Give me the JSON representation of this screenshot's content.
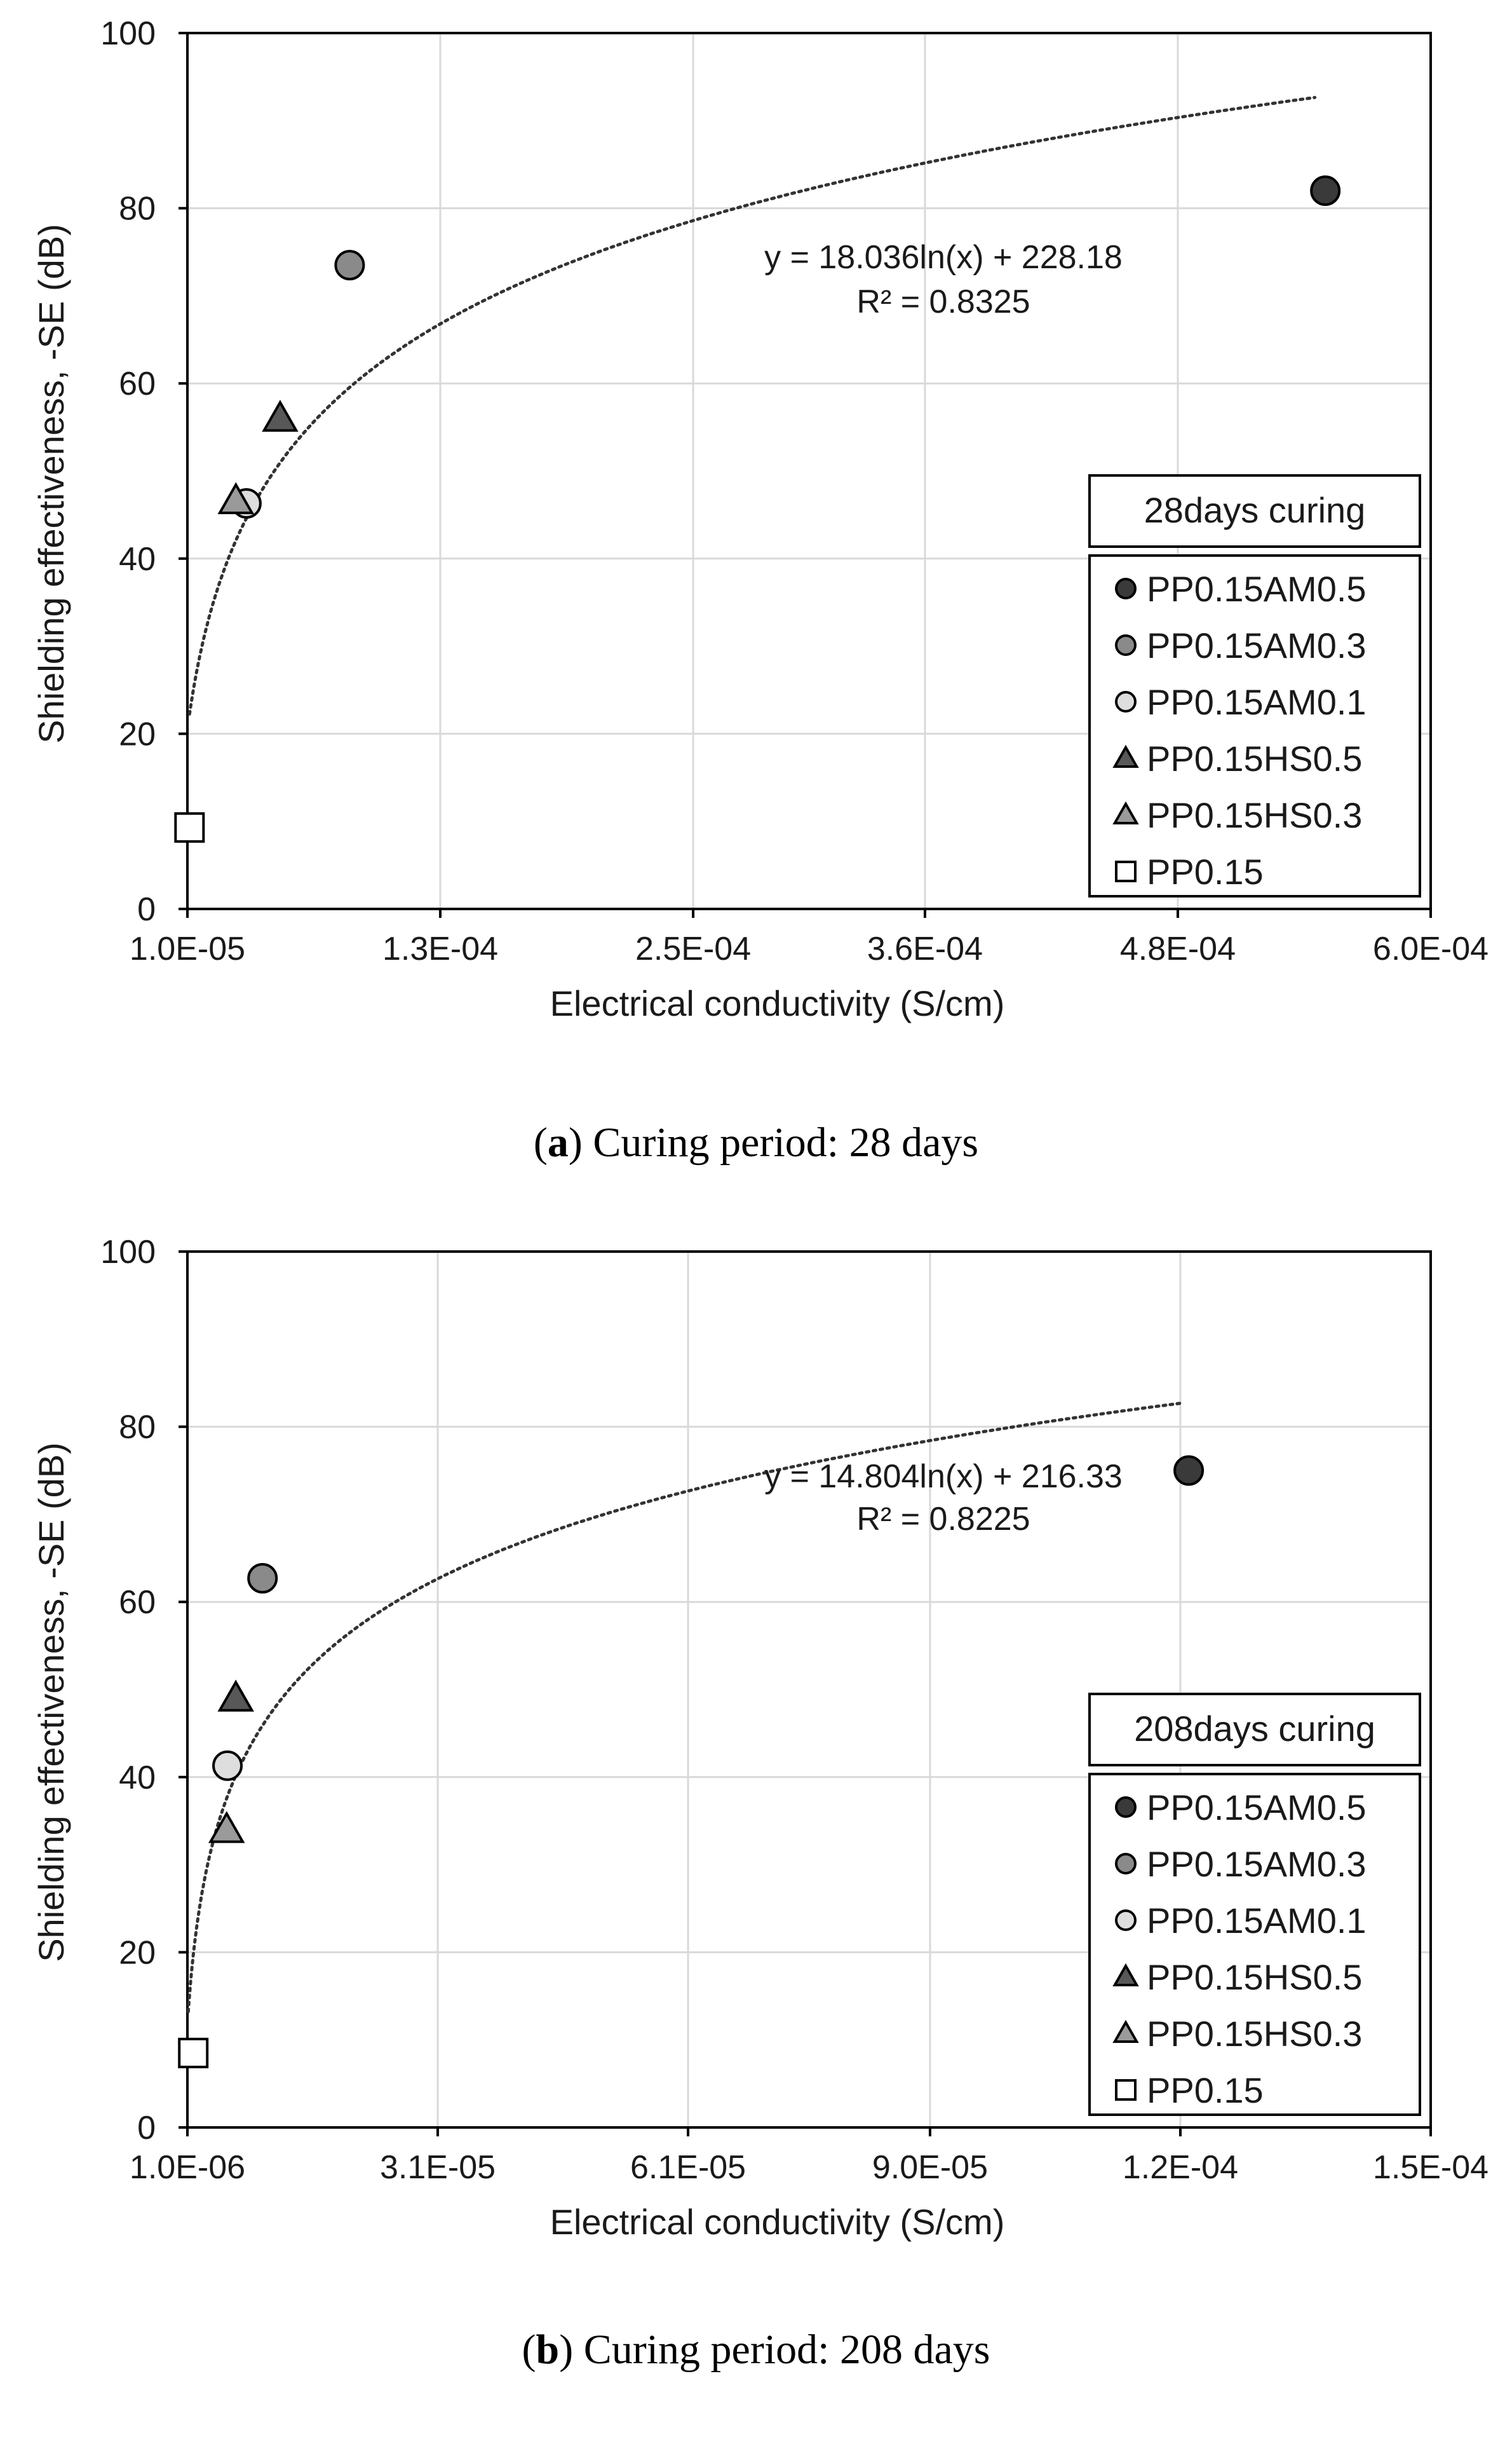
{
  "chart_data": [
    {
      "type": "scatter",
      "panel": "a",
      "legend_title": "28days curing",
      "xlabel": "Electrical conductivity (S/cm)",
      "ylabel": "Shielding effectiveness, -SE (dB)",
      "xlim": [
        1e-05,
        0.0006
      ],
      "ylim": [
        0,
        100
      ],
      "x_tick_values": [
        1e-05,
        0.00013,
        0.00025,
        0.00036,
        0.00048,
        0.0006
      ],
      "x_tick_labels": [
        "1.0E-05",
        "1.3E-04",
        "2.5E-04",
        "3.6E-04",
        "4.8E-04",
        "6.0E-04"
      ],
      "y_tick_values": [
        0,
        20,
        40,
        60,
        80,
        100
      ],
      "y_tick_labels": [
        "0",
        "20",
        "40",
        "60",
        "80",
        "100"
      ],
      "grid": true,
      "legend_position": "bottom-right",
      "series": [
        {
          "name": "PP0.15AM0.5",
          "marker": "circle",
          "color": "#3a3a3a",
          "x": [
            0.00055
          ],
          "y": [
            82
          ]
        },
        {
          "name": "PP0.15AM0.3",
          "marker": "circle",
          "color": "#8a8a8a",
          "x": [
            8.7e-05
          ],
          "y": [
            73.5
          ]
        },
        {
          "name": "PP0.15AM0.1",
          "marker": "circle",
          "color": "#dedede",
          "x": [
            3.8e-05
          ],
          "y": [
            46.3
          ]
        },
        {
          "name": "PP0.15HS0.5",
          "marker": "triangle",
          "color": "#585858",
          "x": [
            5.4e-05
          ],
          "y": [
            56
          ]
        },
        {
          "name": "PP0.15HS0.3",
          "marker": "triangle",
          "color": "#9a9a9a",
          "x": [
            3.3e-05
          ],
          "y": [
            46.6
          ]
        },
        {
          "name": "PP0.15",
          "marker": "square",
          "color": "#ffffff",
          "x": [
            1.1e-05
          ],
          "y": [
            9.3
          ]
        }
      ],
      "trendline": {
        "a": 18.036,
        "b": 228.18,
        "x_start": 1.1e-05,
        "x_end": 0.000545,
        "equation": "y = 18.036ln(x) + 228.18",
        "r2": "R² = 0.8325"
      }
    },
    {
      "type": "scatter",
      "panel": "b",
      "legend_title": "208days curing",
      "xlabel": "Electrical conductivity (S/cm)",
      "ylabel": "Shielding effectiveness, -SE (dB)",
      "xlim": [
        1e-06,
        0.00015
      ],
      "ylim": [
        0,
        100
      ],
      "x_tick_values": [
        1e-06,
        3.1e-05,
        6.1e-05,
        9e-05,
        0.00012,
        0.00015
      ],
      "x_tick_labels": [
        "1.0E-06",
        "3.1E-05",
        "6.1E-05",
        "9.0E-05",
        "1.2E-04",
        "1.5E-04"
      ],
      "y_tick_values": [
        0,
        20,
        40,
        60,
        80,
        100
      ],
      "y_tick_labels": [
        "0",
        "20",
        "40",
        "60",
        "80",
        "100"
      ],
      "grid": true,
      "legend_position": "bottom-right",
      "series": [
        {
          "name": "PP0.15AM0.5",
          "marker": "circle",
          "color": "#3a3a3a",
          "x": [
            0.000121
          ],
          "y": [
            75
          ]
        },
        {
          "name": "PP0.15AM0.3",
          "marker": "circle",
          "color": "#8a8a8a",
          "x": [
            1e-05
          ],
          "y": [
            62.7
          ]
        },
        {
          "name": "PP0.15AM0.1",
          "marker": "circle",
          "color": "#dedede",
          "x": [
            5.8e-06
          ],
          "y": [
            41.3
          ]
        },
        {
          "name": "PP0.15HS0.5",
          "marker": "triangle",
          "color": "#585858",
          "x": [
            6.8e-06
          ],
          "y": [
            49
          ]
        },
        {
          "name": "PP0.15HS0.3",
          "marker": "triangle",
          "color": "#9a9a9a",
          "x": [
            5.7e-06
          ],
          "y": [
            34
          ]
        },
        {
          "name": "PP0.15",
          "marker": "square",
          "color": "#ffffff",
          "x": [
            1.7e-06
          ],
          "y": [
            8.5
          ]
        }
      ],
      "trendline": {
        "a": 14.804,
        "b": 216.33,
        "x_start": 1.1e-06,
        "x_end": 0.00012,
        "equation": "y = 14.804ln(x) + 216.33",
        "r2": "R² = 0.8225"
      }
    }
  ],
  "captions": [
    {
      "letter": "a",
      "open": "(",
      "close": ")",
      "text": " Curing period: 28 days"
    },
    {
      "letter": "b",
      "open": "(",
      "close": ")",
      "text": " Curing period: 208 days"
    }
  ]
}
